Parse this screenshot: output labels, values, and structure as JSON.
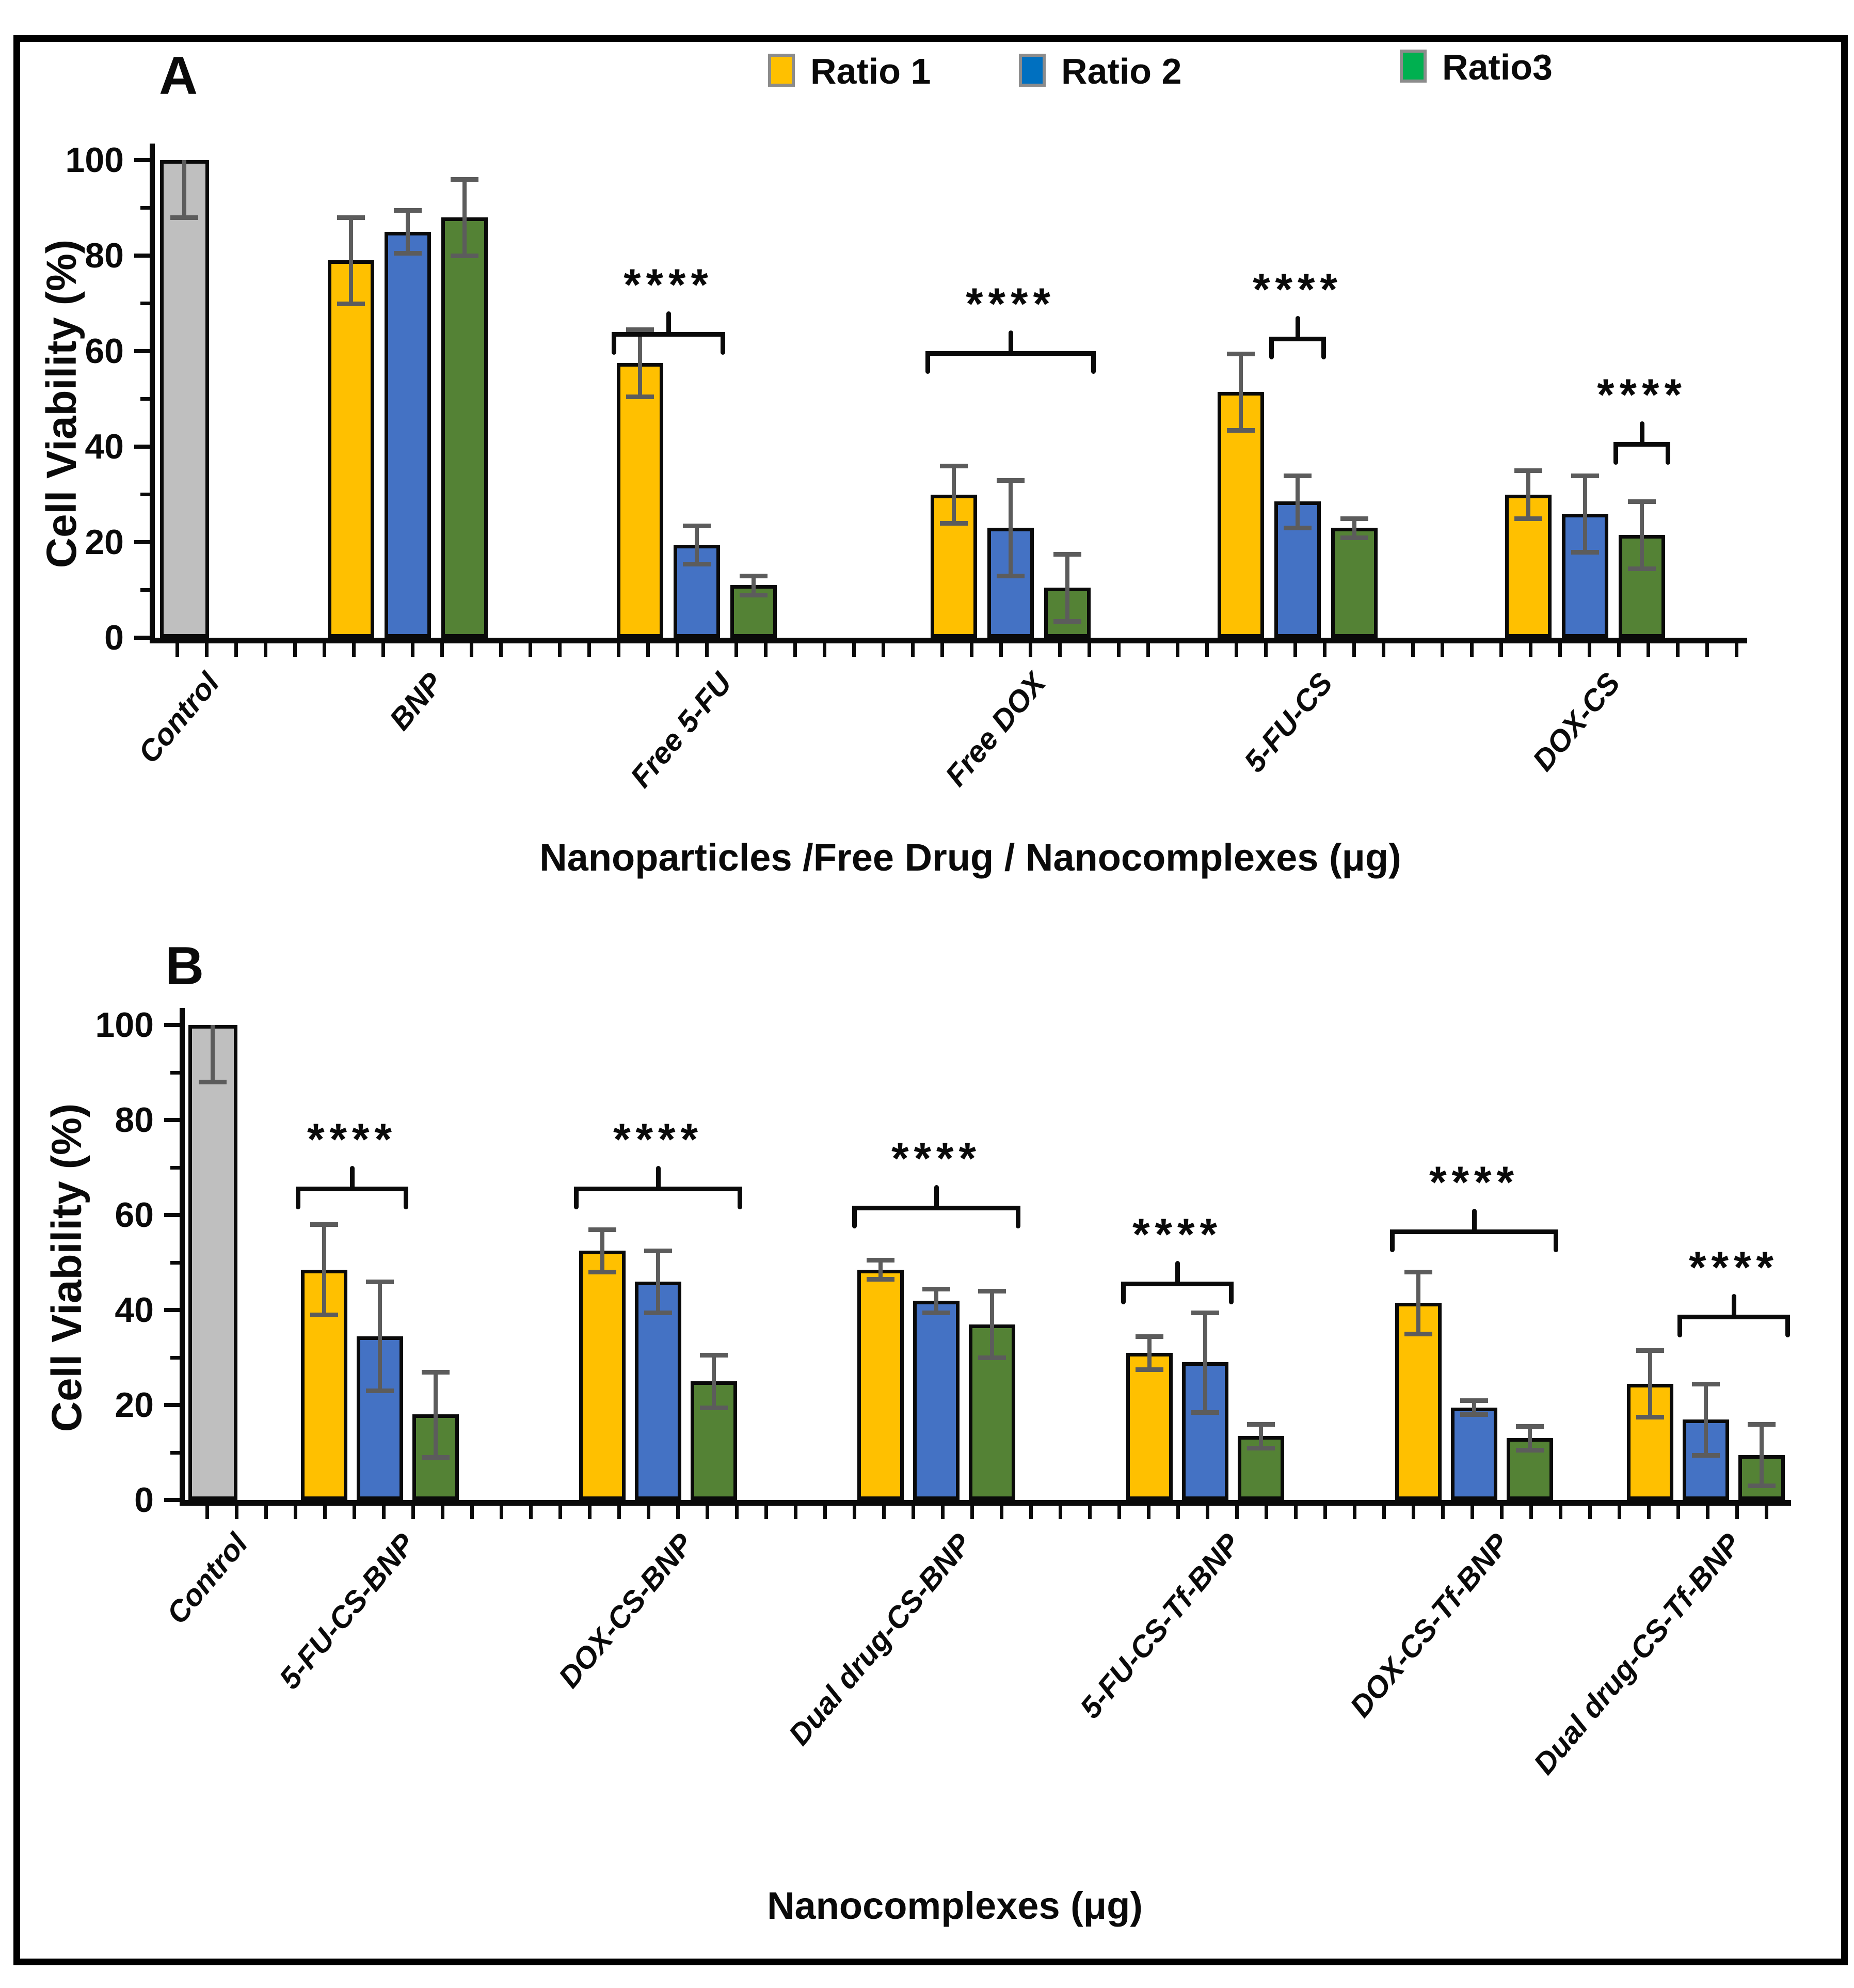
{
  "legend": {
    "items": [
      {
        "label": "Ratio 1",
        "color": "#FFC000"
      },
      {
        "label": "Ratio 2",
        "color": "#0070C0"
      },
      {
        "label": "Ratio3",
        "color": "#00B050"
      }
    ]
  },
  "series_colors": [
    "#FFC000",
    "#4472C4",
    "#548235"
  ],
  "control_color": "#BFBFBF",
  "error_bar_color": "#5c5c5c",
  "chart_data": [
    {
      "type": "bar",
      "panel": "A",
      "title": "",
      "ylabel": "Cell Viability (%)",
      "xlabel": "Nanoparticles /Free Drug / Nanocomplexes (μg)",
      "ylim": [
        0,
        100
      ],
      "yticks": [
        0,
        20,
        40,
        60,
        80,
        100
      ],
      "grid": false,
      "legend_position": "top",
      "series_names": [
        "Ratio 1",
        "Ratio 2",
        "Ratio3"
      ],
      "control": {
        "label": "Control",
        "value": 100,
        "error": 12,
        "whisker": "lower"
      },
      "groups": [
        {
          "label": "BNP",
          "values": [
            79,
            85,
            88
          ],
          "errors": [
            9,
            4.5,
            8
          ],
          "sig": null
        },
        {
          "label": "Free 5-FU",
          "values": [
            57.5,
            19.5,
            11
          ],
          "errors": [
            7,
            4,
            2
          ],
          "sig": {
            "stars": "****",
            "from": 0,
            "to": 1,
            "line": 64
          }
        },
        {
          "label": "Free DOX",
          "values": [
            30,
            23,
            10.5
          ],
          "errors": [
            6,
            10,
            7
          ],
          "sig": {
            "stars": "****",
            "from": 0,
            "to": 2,
            "line": 60
          }
        },
        {
          "label": "5-FU-CS",
          "values": [
            51.5,
            28.5,
            23
          ],
          "errors": [
            8,
            5.5,
            2
          ],
          "sig": {
            "stars": "****",
            "from": 1,
            "to": 1,
            "line": 63
          }
        },
        {
          "label": "DOX-CS",
          "values": [
            30,
            26,
            21.5
          ],
          "errors": [
            5,
            8,
            7
          ],
          "sig": {
            "stars": "****",
            "from": 2,
            "to": 2,
            "line": 41
          }
        }
      ]
    },
    {
      "type": "bar",
      "panel": "B",
      "title": "",
      "ylabel": "Cell Viability (%)",
      "xlabel": "Nanocomplexes (μg)",
      "ylim": [
        0,
        100
      ],
      "yticks": [
        0,
        20,
        40,
        60,
        80,
        100
      ],
      "grid": false,
      "legend_position": "top",
      "series_names": [
        "Ratio 1",
        "Ratio 2",
        "Ratio3"
      ],
      "control": {
        "label": "Control",
        "value": 100,
        "error": 12,
        "whisker": "lower"
      },
      "groups": [
        {
          "label": "5-FU-CS-BNP",
          "values": [
            48.5,
            34.5,
            18
          ],
          "errors": [
            9.5,
            11.5,
            9
          ],
          "sig": {
            "stars": "****",
            "from": 0,
            "to": 1,
            "line": 66
          }
        },
        {
          "label": "DOX-CS-BNP",
          "values": [
            52.5,
            46,
            25
          ],
          "errors": [
            4.5,
            6.5,
            5.5
          ],
          "sig": {
            "stars": "****",
            "from": 0,
            "to": 2,
            "line": 66
          }
        },
        {
          "label": "Dual drug-CS-BNP",
          "values": [
            48.5,
            42,
            37
          ],
          "errors": [
            2,
            2.5,
            7
          ],
          "sig": {
            "stars": "****",
            "from": 0,
            "to": 2,
            "line": 62
          }
        },
        {
          "label": "5-FU-CS-Tf-BNP",
          "values": [
            31,
            29,
            13.5
          ],
          "errors": [
            3.5,
            10.5,
            2.5
          ],
          "sig": {
            "stars": "****",
            "from": 0,
            "to": 1,
            "line": 46
          }
        },
        {
          "label": "DOX-CS-Tf-BNP",
          "values": [
            41.5,
            19.5,
            13
          ],
          "errors": [
            6.5,
            1.5,
            2.5
          ],
          "sig": {
            "stars": "****",
            "from": 0,
            "to": 2,
            "line": 57
          }
        },
        {
          "label": "Dual drug-CS-Tf-BNP",
          "values": [
            24.5,
            17,
            9.5
          ],
          "errors": [
            7,
            7.5,
            6.5
          ],
          "sig": {
            "stars": "****",
            "from": 1,
            "to": 2,
            "line": 39
          }
        }
      ]
    }
  ]
}
